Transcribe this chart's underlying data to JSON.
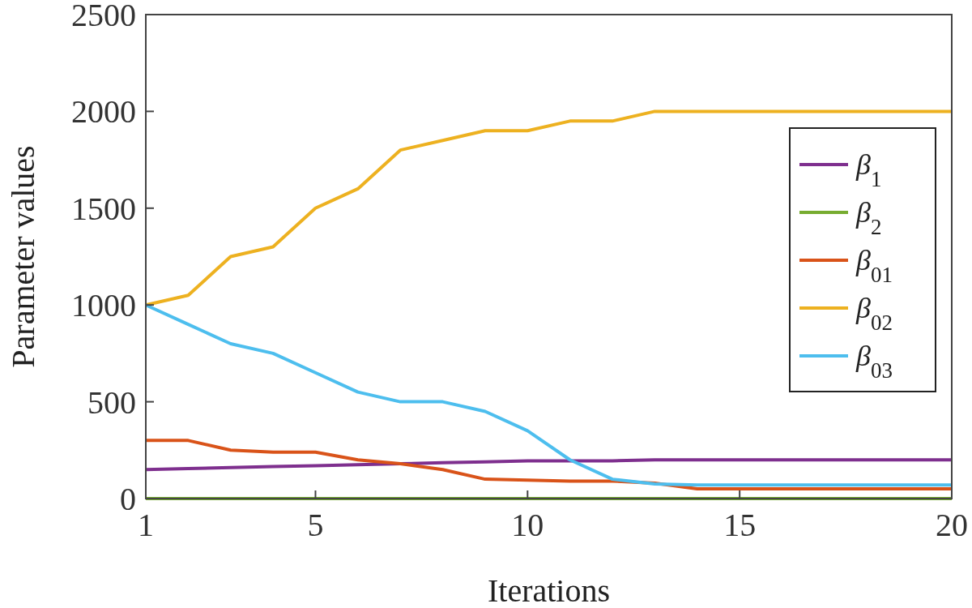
{
  "chart_data": {
    "type": "line",
    "xlabel": "Iterations",
    "ylabel": "Parameter values",
    "x": [
      1,
      2,
      3,
      4,
      5,
      6,
      7,
      8,
      9,
      10,
      11,
      12,
      13,
      14,
      15,
      16,
      17,
      18,
      19,
      20
    ],
    "xlim": [
      1,
      20
    ],
    "xticks": [
      1,
      5,
      10,
      15,
      20
    ],
    "ylim": [
      0,
      2500
    ],
    "yticks": [
      0,
      500,
      1000,
      1500,
      2000,
      2500
    ],
    "legend": "right",
    "grid": false,
    "series": [
      {
        "name": "β$_{1}$",
        "color": "#7e2f8e",
        "values": [
          150,
          155,
          160,
          165,
          170,
          175,
          180,
          185,
          190,
          195,
          195,
          195,
          200,
          200,
          200,
          200,
          200,
          200,
          200,
          200
        ]
      },
      {
        "name": "β$_{2}$",
        "color": "#77ac30",
        "values": [
          0,
          0,
          0,
          0,
          0,
          0,
          0,
          0,
          0,
          0,
          0,
          0,
          0,
          0,
          0,
          0,
          0,
          0,
          0,
          0
        ]
      },
      {
        "name": "β$_{01}$",
        "color": "#d95319",
        "values": [
          300,
          300,
          250,
          240,
          240,
          200,
          180,
          150,
          100,
          95,
          90,
          90,
          80,
          50,
          50,
          50,
          50,
          50,
          50,
          50
        ]
      },
      {
        "name": "β$_{02}$",
        "color": "#edb120",
        "values": [
          1000,
          1050,
          1250,
          1300,
          1500,
          1600,
          1800,
          1850,
          1900,
          1900,
          1950,
          1950,
          2000,
          2000,
          2000,
          2000,
          2000,
          2000,
          2000,
          2000
        ]
      },
      {
        "name": "β$_{03}$",
        "color": "#4dbeee",
        "values": [
          1000,
          900,
          800,
          750,
          650,
          550,
          500,
          500,
          450,
          350,
          200,
          100,
          75,
          70,
          70,
          70,
          70,
          70,
          70,
          70
        ]
      }
    ]
  }
}
